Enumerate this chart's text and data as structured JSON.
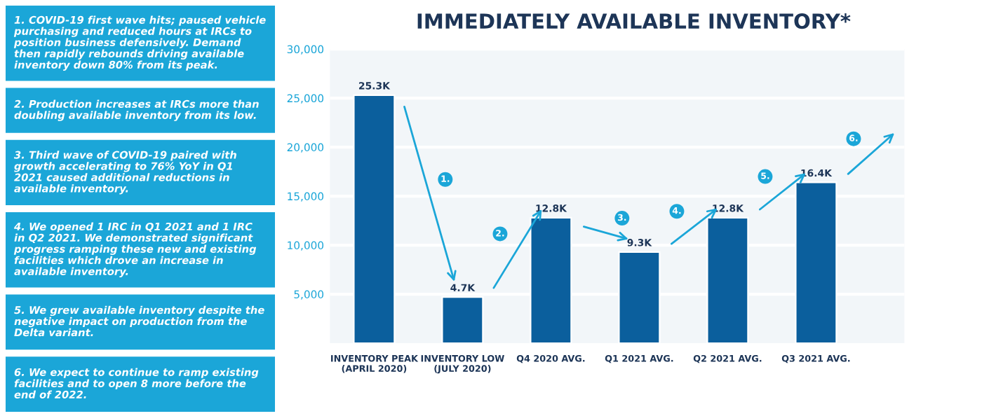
{
  "chart_data": {
    "type": "bar",
    "title": "IMMEDIATELY AVAILABLE INVENTORY*",
    "categories": [
      "INVENTORY PEAK\n(APRIL 2020)",
      "INVENTORY LOW\n(JULY 2020)",
      "Q4 2020 AVG.",
      "Q1 2021 AVG.",
      "Q2 2021 AVG.",
      "Q3 2021 AVG."
    ],
    "values": [
      25300,
      4700,
      12800,
      9300,
      12800,
      16400
    ],
    "value_labels": [
      "25.3K",
      "4.7K",
      "12.8K",
      "9.3K",
      "12.8K",
      "16.4K"
    ],
    "color": "#0b5f9d",
    "ylim": [
      0,
      30000
    ],
    "yticks": [
      {
        "value": 5000,
        "label": "5,000"
      },
      {
        "value": 10000,
        "label": "10,000"
      },
      {
        "value": 15000,
        "label": "15,000"
      },
      {
        "value": 20000,
        "label": "20,000"
      },
      {
        "value": 25000,
        "label": "25,000"
      },
      {
        "value": 30000,
        "label": "30,000"
      }
    ],
    "grid": "y",
    "annotations": [
      "1. COVID-19 first wave hits; paused vehicle purchasing and reduced hours at IRCs to position business defensively. Demand then rapidly rebounds driving available inventory down 80% from its peak.",
      "2. Production increases at IRCs more than doubling available inventory from its low.",
      "3. Third wave of COVID-19 paired with growth accelerating to 76% YoY in Q1 2021 caused additional reductions in available inventory.",
      "4. We opened 1 IRC in Q1 2021 and 1 IRC in Q2 2021. We demonstrated significant progress ramping these new and existing facilities which drove an increase in available inventory.",
      "5. We grew available inventory despite the negative impact on production from the Delta variant.",
      "6. We expect to continue to ramp existing facilities and to open 8 more before the end of 2022.",
      "1.",
      "2.",
      "3.",
      "4.",
      "5.",
      "6."
    ]
  }
}
